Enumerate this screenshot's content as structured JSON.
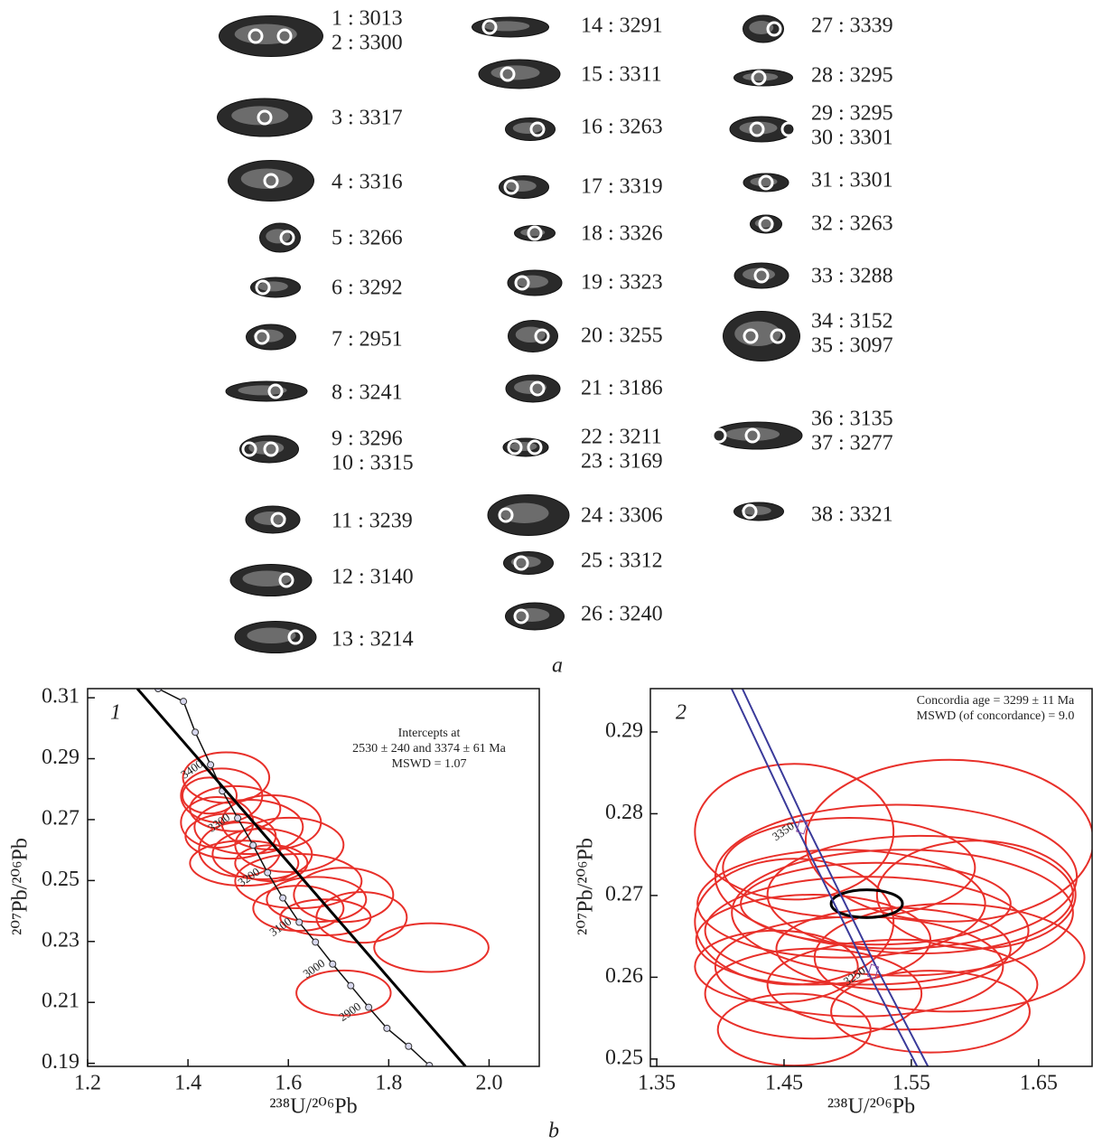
{
  "panel_a": {
    "label": "a",
    "grains": [
      [
        "1 : 3013",
        "2 : 3300"
      ],
      [
        "3 : 3317"
      ],
      [
        "4 : 3316"
      ],
      [
        "5 : 3266"
      ],
      [
        "6 : 3292"
      ],
      [
        "7 : 2951"
      ],
      [
        "8 : 3241"
      ],
      [
        "9 : 3296",
        "10 : 3315"
      ],
      [
        "11 : 3239"
      ],
      [
        "12 : 3140"
      ],
      [
        "13 : 3214"
      ],
      [
        "14 : 3291"
      ],
      [
        "15 : 3311"
      ],
      [
        "16 : 3263"
      ],
      [
        "17 : 3319"
      ],
      [
        "18 : 3326"
      ],
      [
        "19 : 3323"
      ],
      [
        "20 : 3255"
      ],
      [
        "21 : 3186"
      ],
      [
        "22 : 3211",
        "23 : 3169"
      ],
      [
        "24 : 3306"
      ],
      [
        "25 : 3312"
      ],
      [
        "26 : 3240"
      ],
      [
        "27 : 3339"
      ],
      [
        "28 : 3295"
      ],
      [
        "29 : 3295",
        "30 : 3301"
      ],
      [
        "31 : 3301"
      ],
      [
        "32 : 3263"
      ],
      [
        "33 : 3288"
      ],
      [
        "34 : 3152",
        "35 : 3097"
      ],
      [
        "36 : 3135",
        "37 : 3277"
      ],
      [
        "38 : 3321"
      ]
    ]
  },
  "panel_b_label": "b",
  "chart_data": [
    {
      "type": "scatter",
      "panel_label": "1",
      "annotation": [
        "Intercepts at",
        "2530 ± 240 and 3374 ± 61 Ma",
        "MSWD = 1.07"
      ],
      "xlabel": "²³⁸U/²⁰⁶Pb",
      "ylabel": "²⁰⁷Pb/²⁰⁶Pb",
      "xlim": [
        1.2,
        2.1
      ],
      "ylim": [
        0.189,
        0.313
      ],
      "xticks": [
        1.2,
        1.4,
        1.6,
        1.8,
        {
          "value": 2,
          "label": "2.0"
        }
      ],
      "yticks": [
        0.19,
        0.21,
        0.23,
        0.25,
        0.27,
        0.29,
        0.31
      ],
      "series": [
        {
          "mark": "ellipse",
          "color": "#e8302a",
          "x": [
            1.476,
            1.467,
            1.494,
            1.458,
            1.521,
            1.485,
            1.503,
            1.566,
            1.548,
            1.602,
            1.512,
            1.62,
            1.656,
            1.71,
            1.62,
            1.746,
            1.674,
            1.885,
            1.71,
            1.443,
            1.566
          ],
          "values": [
            0.2838,
            0.2779,
            0.2736,
            0.2691,
            0.2676,
            0.2646,
            0.2602,
            0.2691,
            0.2587,
            0.2617,
            0.2557,
            0.2498,
            0.2438,
            0.2453,
            0.2409,
            0.2379,
            0.2379,
            0.228,
            0.2131,
            0.2779,
            0.2557
          ],
          "x_err": [
            0.086,
            0.081,
            0.09,
            0.072,
            0.108,
            0.09,
            0.081,
            0.099,
            0.099,
            0.108,
            0.108,
            0.126,
            0.099,
            0.099,
            0.09,
            0.09,
            0.09,
            0.114,
            0.094,
            0.054,
            0.072
          ],
          "y_err": [
            0.0083,
            0.0089,
            0.0074,
            0.0083,
            0.0089,
            0.0074,
            0.0089,
            0.0089,
            0.0083,
            0.0089,
            0.0074,
            0.0089,
            0.0074,
            0.0089,
            0.0074,
            0.0083,
            0.0059,
            0.008,
            0.0074,
            0.0059,
            0.0059
          ]
        },
        {
          "mark": "line",
          "color": "#111111",
          "markers": true,
          "x": [
            1.3405,
            1.391,
            1.4144,
            1.445,
            1.4685,
            1.499,
            1.5297,
            1.5586,
            1.589,
            1.6216,
            1.654,
            1.6883,
            1.7243,
            1.76,
            1.7964,
            1.8396,
            1.881
          ],
          "values": [
            0.313,
            0.3088,
            0.2987,
            0.288,
            0.2794,
            0.2705,
            0.2616,
            0.2526,
            0.2443,
            0.2363,
            0.2298,
            0.2226,
            0.2155,
            0.2084,
            0.2015,
            0.1956,
            0.1893
          ],
          "point_labels": [
            null,
            null,
            null,
            "3400",
            null,
            "3300",
            null,
            "3200",
            null,
            "3100",
            null,
            "3000",
            null,
            "2900",
            null,
            null,
            null
          ]
        },
        {
          "mark": "line",
          "color": "#000000",
          "width": 3,
          "x": [
            1.299,
            1.953
          ],
          "values": [
            0.313,
            0.189
          ]
        }
      ]
    },
    {
      "type": "scatter",
      "panel_label": "2",
      "annotation": [
        "Concordia age = 3299 ± 11 Ma",
        "MSWD (of concordance) = 9.0"
      ],
      "xlabel": "²³⁸U/²⁰⁶Pb",
      "ylabel": "²⁰⁷Pb/²⁰⁶Pb",
      "xlim": [
        1.345,
        1.692
      ],
      "ylim": [
        0.2491,
        0.2953
      ],
      "xticks": [
        1.35,
        1.45,
        1.55,
        1.65
      ],
      "yticks": [
        0.25,
        0.26,
        0.27,
        0.28,
        0.29
      ],
      "series": [
        {
          "mark": "ellipse",
          "color": "#e8302a",
          "x": [
            1.458,
            1.58,
            1.538,
            1.495,
            1.543,
            1.515,
            1.473,
            1.58,
            1.509,
            1.543,
            1.473,
            1.458,
            1.557,
            1.501,
            1.522,
            1.601,
            1.444,
            1.536,
            1.458,
            1.565
          ],
          "values": [
            0.2778,
            0.2767,
            0.2723,
            0.269,
            0.2679,
            0.2657,
            0.2646,
            0.2624,
            0.2613,
            0.2591,
            0.258,
            0.2668,
            0.2701,
            0.2734,
            0.269,
            0.2701,
            0.2613,
            0.2635,
            0.2536,
            0.2558
          ],
          "x_err": [
            0.078,
            0.113,
            0.142,
            0.113,
            0.134,
            0.127,
            0.092,
            0.106,
            0.113,
            0.106,
            0.085,
            0.078,
            0.12,
            0.099,
            0.106,
            0.078,
            0.064,
            0.092,
            0.06,
            0.078
          ],
          "y_err": [
            0.0083,
            0.0099,
            0.0088,
            0.0066,
            0.0077,
            0.0066,
            0.0055,
            0.0066,
            0.0061,
            0.0055,
            0.0055,
            0.0077,
            0.0072,
            0.0061,
            0.005,
            0.0066,
            0.0044,
            0.005,
            0.0044,
            0.005
          ]
        },
        {
          "mark": "ellipse",
          "color": "#000000",
          "width": 3,
          "x": [
            1.515
          ],
          "values": [
            0.269
          ],
          "x_err": [
            0.028
          ],
          "y_err": [
            0.0017
          ]
        },
        {
          "mark": "line",
          "color": "#3a3a9a",
          "band": true,
          "x": [
            1.413,
            1.464,
            1.52,
            1.5588
          ],
          "values": [
            0.2953,
            0.2784,
            0.2607,
            0.2491
          ],
          "point_labels": [
            null,
            "3350",
            "3250",
            null
          ]
        }
      ]
    }
  ]
}
